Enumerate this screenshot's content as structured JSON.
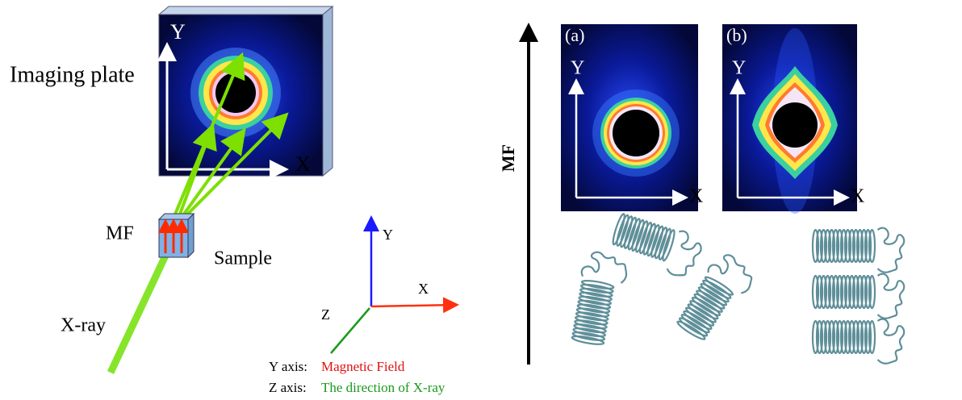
{
  "left": {
    "imaging_plate": {
      "label": "Imaging plate",
      "y_axis": "Y",
      "x_axis": "X"
    },
    "sample": {
      "field_label": "MF",
      "label": "Sample"
    },
    "xray_label": "X-ray",
    "axes": {
      "y": "Y",
      "x": "X",
      "z": "Z"
    },
    "legend": [
      {
        "axis": "Y  axis:",
        "meaning": "Magnetic Field"
      },
      {
        "axis": "Z  axis:",
        "meaning": "The direction of X-ray"
      }
    ]
  },
  "right": {
    "arrow_label": "MF",
    "panels": [
      {
        "label": "(a)",
        "y_axis": "Y",
        "x_axis": "X"
      },
      {
        "label": "(b)",
        "y_axis": "Y",
        "x_axis": "X"
      }
    ]
  }
}
